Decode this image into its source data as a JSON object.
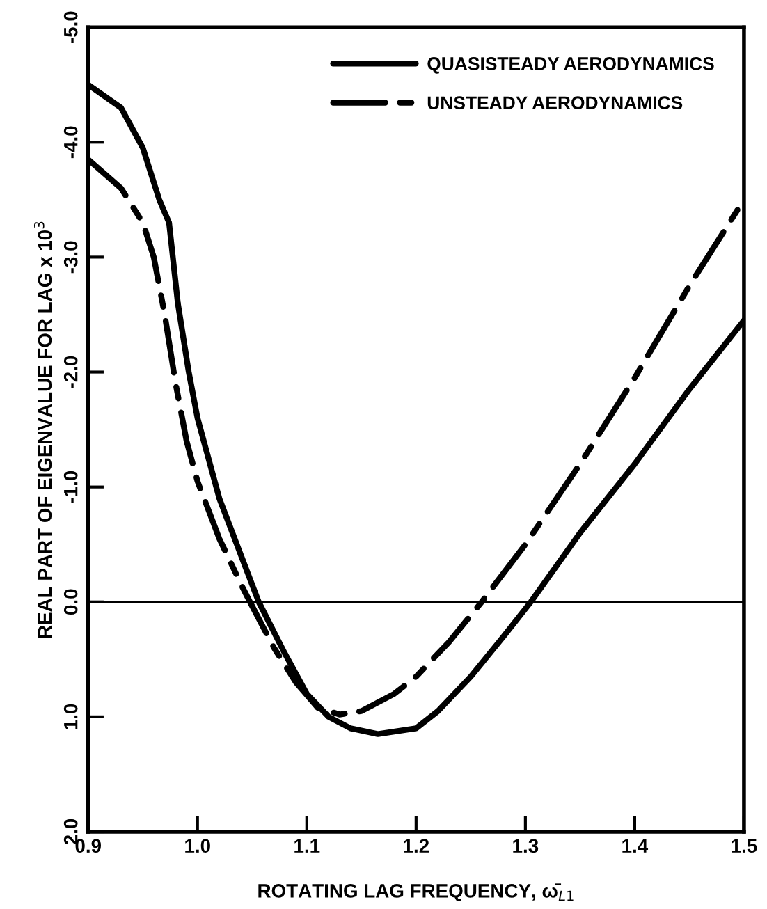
{
  "chart_data": {
    "type": "line",
    "xlabel": "ROTATING LAG FREQUENCY, ω̄$_{L1}$",
    "ylabel": "REAL PART OF EIGENVALUE FOR LAG x 10$^{3}$",
    "xlim": [
      0.9,
      1.5
    ],
    "ylim": [
      2.0,
      -5.0
    ],
    "xticks": [
      0.9,
      {
        "value": 1.0,
        "label": "1.0"
      },
      1.1,
      1.2,
      1.3,
      1.4,
      1.5
    ],
    "yticks": [
      {
        "value": -5,
        "label": "-5.0"
      },
      {
        "value": -4,
        "label": "-4.0"
      },
      {
        "value": -3,
        "label": "-3.0"
      },
      {
        "value": -2,
        "label": "-2.0"
      },
      {
        "value": -1,
        "label": "-1.0"
      },
      {
        "value": 0,
        "label": "0.0"
      },
      {
        "value": 1,
        "label": "1.0"
      },
      {
        "value": 2,
        "label": "2.0"
      }
    ],
    "grid": false,
    "legend": "top right",
    "marker": "none",
    "ref_lines": [
      {
        "axis": "y",
        "value": 0,
        "color": "#000000"
      }
    ],
    "series": [
      {
        "name": "QUASISTEADY AERODYNAMICS",
        "color": "#000000",
        "line_style": "solid",
        "x": [
          0.9,
          0.93,
          0.95,
          0.965,
          0.974,
          0.982,
          0.992,
          1.0,
          1.02,
          1.04,
          1.056,
          1.08,
          1.1,
          1.12,
          1.14,
          1.165,
          1.2,
          1.22,
          1.25,
          1.28,
          1.305,
          1.35,
          1.4,
          1.45,
          1.5
        ],
        "values": [
          -4.5,
          -4.3,
          -3.95,
          -3.5,
          -3.3,
          -2.6,
          -2.0,
          -1.6,
          -0.9,
          -0.4,
          0.0,
          0.45,
          0.8,
          1.0,
          1.1,
          1.15,
          1.1,
          0.95,
          0.65,
          0.3,
          0.0,
          -0.6,
          -1.2,
          -1.85,
          -2.45
        ]
      },
      {
        "name": "UNSTEADY AERODYNAMICS",
        "color": "#000000",
        "line_style": "dashed",
        "x": [
          0.9,
          0.93,
          0.95,
          0.96,
          0.97,
          0.98,
          0.99,
          1.0,
          1.02,
          1.04,
          1.048,
          1.07,
          1.09,
          1.11,
          1.13,
          1.15,
          1.18,
          1.2,
          1.23,
          1.26,
          1.3,
          1.35,
          1.4,
          1.45,
          1.5
        ],
        "values": [
          -3.85,
          -3.6,
          -3.3,
          -3.0,
          -2.5,
          -1.9,
          -1.4,
          -1.05,
          -0.55,
          -0.15,
          0.0,
          0.4,
          0.7,
          0.92,
          0.98,
          0.95,
          0.8,
          0.65,
          0.35,
          0.0,
          -0.5,
          -1.2,
          -1.95,
          -2.75,
          -3.5
        ]
      }
    ]
  }
}
